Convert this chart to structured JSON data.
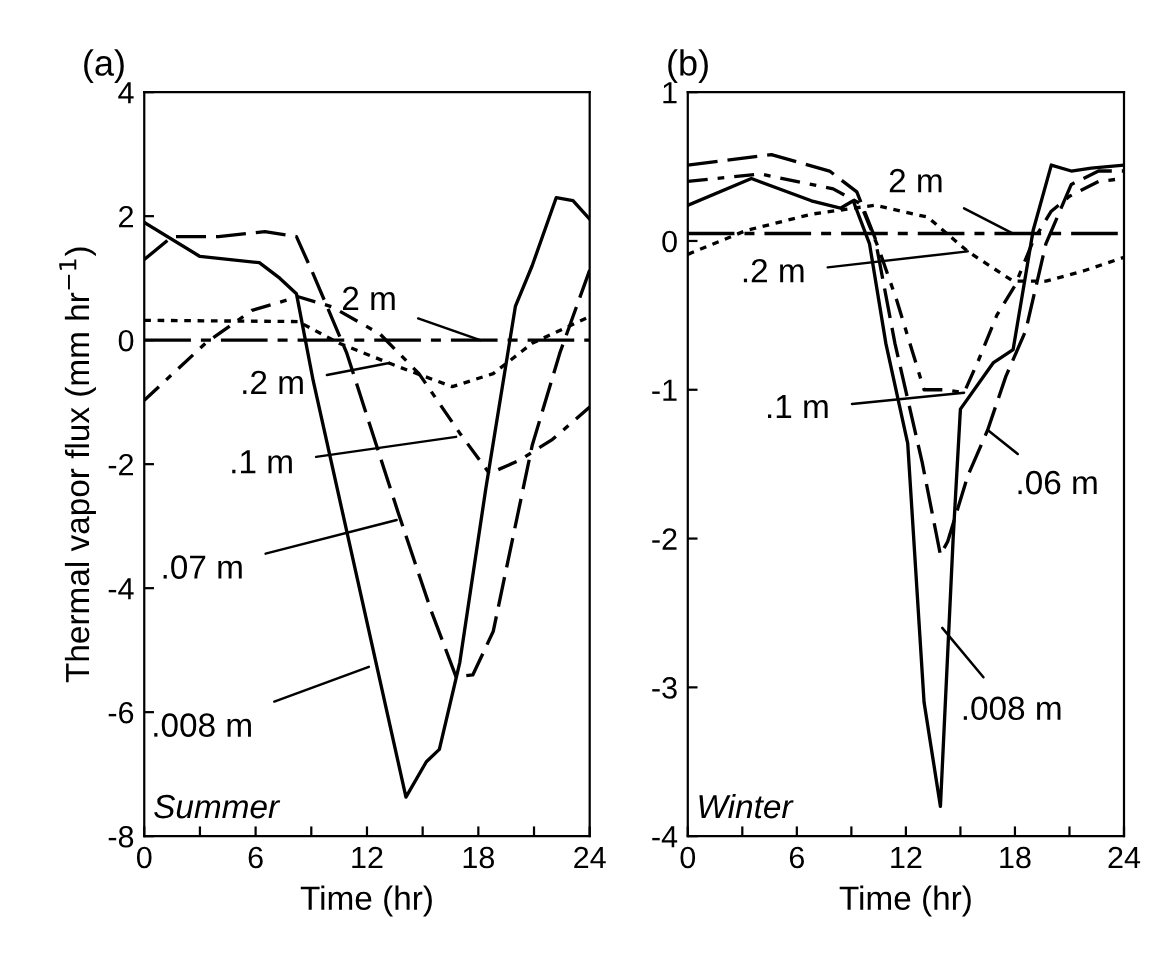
{
  "chart_data": [
    {
      "type": "line",
      "title": "(a)",
      "xlabel": "Time (hr)",
      "ylabel": "Thermal vapor flux (mm hr$^{−1}$)",
      "xlim": [
        0,
        24
      ],
      "xticks": [
        0,
        {
          "value": 3,
          "label": null
        },
        6,
        {
          "value": 9,
          "label": null
        },
        12,
        {
          "value": 15,
          "label": null
        },
        18,
        {
          "value": 21,
          "label": null
        },
        24
      ],
      "ylim": [
        -8,
        4
      ],
      "yticks": [
        -8,
        -6,
        -4,
        -2,
        0,
        2,
        4
      ],
      "grid": false,
      "legend": false,
      "series": [
        {
          "color": "#000000",
          "line_style": "solid",
          "x": [
            0,
            3,
            6.2,
            7.3,
            8.2,
            9.1,
            14.1,
            15.2,
            15.9,
            17,
            18.4,
            20,
            20.9,
            22.2,
            23.1,
            24
          ],
          "values": [
            1.9,
            1.35,
            1.25,
            1.0,
            0.75,
            -0.65,
            -7.37,
            -6.8,
            -6.6,
            -5.2,
            -2.4,
            0.55,
            1.2,
            2.3,
            2.25,
            1.95
          ]
        },
        {
          "color": "#000000",
          "line_style": "dashed",
          "x": [
            0,
            1.5,
            4,
            6.5,
            8.2,
            9.1,
            10.9,
            13.7,
            15.5,
            16.8,
            17.7,
            18.8,
            20.9,
            22.4,
            24
          ],
          "values": [
            1.3,
            1.67,
            1.67,
            1.75,
            1.67,
            1.07,
            -0.2,
            -2.8,
            -4.4,
            -5.43,
            -5.4,
            -4.7,
            -1.7,
            -0.2,
            1.13
          ]
        },
        {
          "color": "#000000",
          "line_style": "dashed",
          "x": [
            0,
            3.3,
            5.8,
            8.3,
            10.1,
            12.7,
            14.8,
            17,
            18.6,
            20.2,
            22,
            24
          ],
          "values": [
            -0.97,
            -0.05,
            0.48,
            0.7,
            0.54,
            0.1,
            -0.54,
            -1.5,
            -2.15,
            -1.94,
            -1.6,
            -1.08
          ]
        },
        {
          "color": "#000000",
          "line_style": "dotted",
          "x": [
            0,
            8.3,
            10.5,
            13.7,
            16.6,
            18.8,
            20.9,
            24
          ],
          "values": [
            0.32,
            0.3,
            -0.05,
            -0.43,
            -0.75,
            -0.54,
            -0.05,
            0.38
          ]
        },
        {
          "color": "#000000",
          "line_style": "dashed",
          "x": [
            0,
            6,
            12,
            18,
            24
          ],
          "values": [
            0.0,
            0.0,
            0.0,
            0.0,
            0.0
          ]
        }
      ],
      "annotations": [
        {
          "text": "2 m",
          "x": 18.1,
          "y": 0.0
        },
        {
          "text": ".2 m",
          "x": 13.2,
          "y": -0.37
        },
        {
          "text": ".1 m",
          "x": 16.8,
          "y": -1.56
        },
        {
          "text": ".07 m",
          "x": 13.6,
          "y": -2.9
        },
        {
          "text": ".008 m",
          "x": 12.1,
          "y": -5.27
        },
        "Summer"
      ]
    },
    {
      "type": "line",
      "title": "(b)",
      "xlabel": "Time (hr)",
      "xlim": [
        0,
        24
      ],
      "xticks": [
        0,
        {
          "value": 3,
          "label": null
        },
        6,
        {
          "value": 9,
          "label": null
        },
        12,
        {
          "value": 15,
          "label": null
        },
        18,
        {
          "value": 21,
          "label": null
        },
        24
      ],
      "ylim": [
        -4,
        1
      ],
      "yticks": [
        -4,
        -3,
        -2,
        -1,
        0,
        1
      ],
      "grid": false,
      "legend": false,
      "series": [
        {
          "color": "#000000",
          "line_style": "solid",
          "x": [
            0,
            3.5,
            6.8,
            8.4,
            9.1,
            10,
            10.9,
            12.1,
            13,
            13.9,
            14.6,
            15,
            16.8,
            17.9,
            19,
            20,
            21.1,
            22.2,
            24
          ],
          "values": [
            0.24,
            0.42,
            0.27,
            0.22,
            0.27,
            -0.02,
            -0.69,
            -1.36,
            -3.1,
            -3.8,
            -2.0,
            -1.13,
            -0.82,
            -0.73,
            0.07,
            0.51,
            0.47,
            0.49,
            0.51
          ]
        },
        {
          "color": "#000000",
          "line_style": "dashed",
          "x": [
            0,
            4.6,
            7.8,
            9.3,
            10.3,
            11.4,
            12.9,
            13.9,
            14.3,
            15.4,
            16.5,
            17.5,
            18.6,
            19.7,
            21.1,
            22.6,
            24
          ],
          "values": [
            0.51,
            0.58,
            0.47,
            0.33,
            0.02,
            -0.69,
            -1.49,
            -2.11,
            -2.02,
            -1.58,
            -1.27,
            -0.91,
            -0.6,
            -0.02,
            0.38,
            0.47,
            0.47
          ]
        },
        {
          "color": "#000000",
          "line_style": "dashed",
          "x": [
            0,
            4,
            8,
            9.5,
            10.5,
            11.5,
            13,
            14.2,
            15.2,
            16,
            17,
            18,
            19,
            20,
            21,
            22.6,
            24
          ],
          "values": [
            0.4,
            0.45,
            0.35,
            0.25,
            -0.05,
            -0.4,
            -1.0,
            -1.0,
            -1.02,
            -0.8,
            -0.5,
            -0.3,
            0.0,
            0.2,
            0.3,
            0.4,
            0.42
          ]
        },
        {
          "color": "#000000",
          "line_style": "dotted",
          "x": [
            0,
            3.2,
            6.8,
            10.3,
            13.2,
            15.4,
            17.9,
            19.7,
            21.8,
            24
          ],
          "values": [
            -0.09,
            0.07,
            0.18,
            0.24,
            0.16,
            -0.07,
            -0.27,
            -0.27,
            -0.2,
            -0.11
          ]
        },
        {
          "color": "#000000",
          "line_style": "dashed",
          "x": [
            0,
            6,
            12,
            18,
            24
          ],
          "values": [
            0.05,
            0.05,
            0.05,
            0.05,
            0.05
          ]
        }
      ],
      "annotations": [
        {
          "text": "2 m",
          "x": 17.9,
          "y": 0.05
        },
        {
          "text": ".2 m",
          "x": 15.4,
          "y": -0.07
        },
        {
          "text": ".1 m",
          "x": 15.2,
          "y": -1.02
        },
        {
          "text": ".06 m",
          "x": 16.5,
          "y": -1.27
        },
        {
          "text": ".008 m",
          "x": 14.0,
          "y": -2.6
        },
        "Winter"
      ]
    }
  ]
}
